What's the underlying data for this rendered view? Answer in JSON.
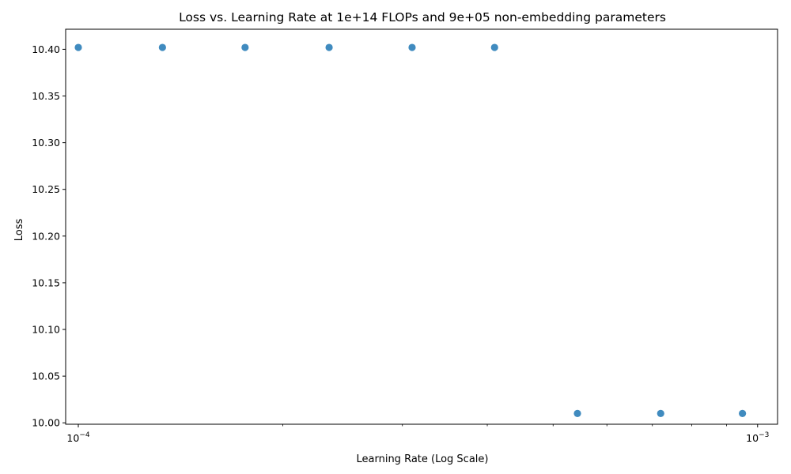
{
  "chart_data": {
    "type": "scatter",
    "title": "Loss vs. Learning Rate at 1e+14 FLOPs and 9e+05 non-embedding parameters",
    "xlabel": "Learning Rate (Log Scale)",
    "ylabel": "Loss",
    "xscale": "log",
    "xlim": [
      9.58e-05,
      0.00107
    ],
    "ylim": [
      9.9985,
      10.4215
    ],
    "grid": false,
    "legend": "none",
    "x_major_ticks": [
      {
        "value": 0.0001,
        "base": "10",
        "exp": "−4"
      },
      {
        "value": 0.001,
        "base": "10",
        "exp": "−3"
      }
    ],
    "x_minor_ticks": [
      0.0002,
      0.0003,
      0.0004,
      0.0005,
      0.0006,
      0.0007,
      0.0008,
      0.0009
    ],
    "y_ticks": [
      {
        "value": 10.0,
        "label": "10.00"
      },
      {
        "value": 10.05,
        "label": "10.05"
      },
      {
        "value": 10.1,
        "label": "10.10"
      },
      {
        "value": 10.15,
        "label": "10.15"
      },
      {
        "value": 10.2,
        "label": "10.20"
      },
      {
        "value": 10.25,
        "label": "10.25"
      },
      {
        "value": 10.3,
        "label": "10.30"
      },
      {
        "value": 10.35,
        "label": "10.35"
      },
      {
        "value": 10.4,
        "label": "10.40"
      }
    ],
    "series": [
      {
        "color": "#1f77b4",
        "points": [
          {
            "x": 0.0001,
            "y": 10.402
          },
          {
            "x": 0.000133,
            "y": 10.402
          },
          {
            "x": 0.000176,
            "y": 10.402
          },
          {
            "x": 0.000234,
            "y": 10.402
          },
          {
            "x": 0.00031,
            "y": 10.402
          },
          {
            "x": 0.00041,
            "y": 10.402
          },
          {
            "x": 0.000543,
            "y": 10.01
          },
          {
            "x": 0.00072,
            "y": 10.01
          },
          {
            "x": 0.00095,
            "y": 10.01
          }
        ]
      }
    ]
  }
}
